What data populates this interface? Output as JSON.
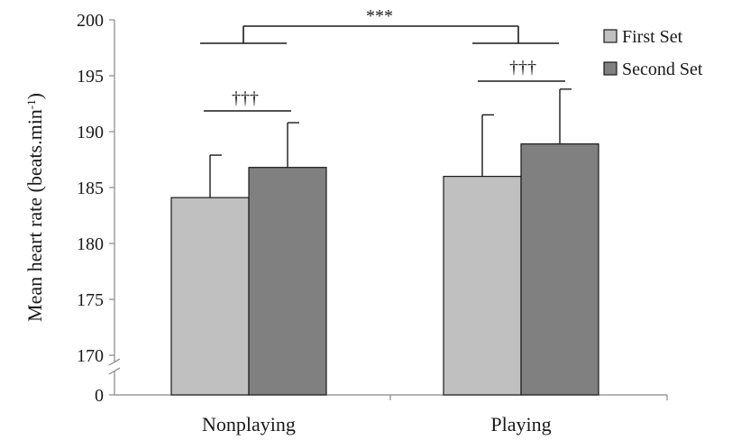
{
  "chart_data": {
    "type": "bar",
    "categories": [
      "Nonplaying",
      "Playing"
    ],
    "series": [
      {
        "name": "First Set",
        "values": [
          184.1,
          186.0
        ],
        "errors": [
          3.8,
          5.5
        ],
        "color": "#c0c0c0"
      },
      {
        "name": "Second Set",
        "values": [
          186.8,
          188.9
        ],
        "errors": [
          4.0,
          4.9
        ],
        "color": "#808080"
      }
    ],
    "ylabel": "Mean heart rate (beats.min",
    "ylabel_sup": "-1",
    "ylabel_close": ")",
    "yticks": [
      "0",
      "170",
      "175",
      "180",
      "185",
      "190",
      "195",
      "200"
    ],
    "ylim": [
      170,
      200
    ],
    "axis_break": true,
    "legend_position": "top-right",
    "annotations": {
      "between_conditions": "***",
      "between_sets": "†††"
    }
  }
}
